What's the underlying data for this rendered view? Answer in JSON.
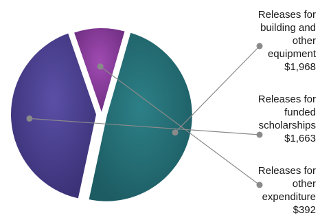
{
  "chart_data": {
    "type": "pie",
    "title": "",
    "colors": [
      "#236b72",
      "#4a3f92",
      "#8c3c9e"
    ],
    "slices": [
      {
        "label_lines": [
          "Releases for",
          "building and",
          "other",
          "equipment"
        ],
        "value_text": "$1,968",
        "value": 1968
      },
      {
        "label_lines": [
          "Releases for",
          "funded",
          "scholarships"
        ],
        "value_text": "$1,663",
        "value": 1663
      },
      {
        "label_lines": [
          "Releases for",
          "other",
          "expenditure"
        ],
        "value_text": "$392",
        "value": 392
      }
    ]
  }
}
